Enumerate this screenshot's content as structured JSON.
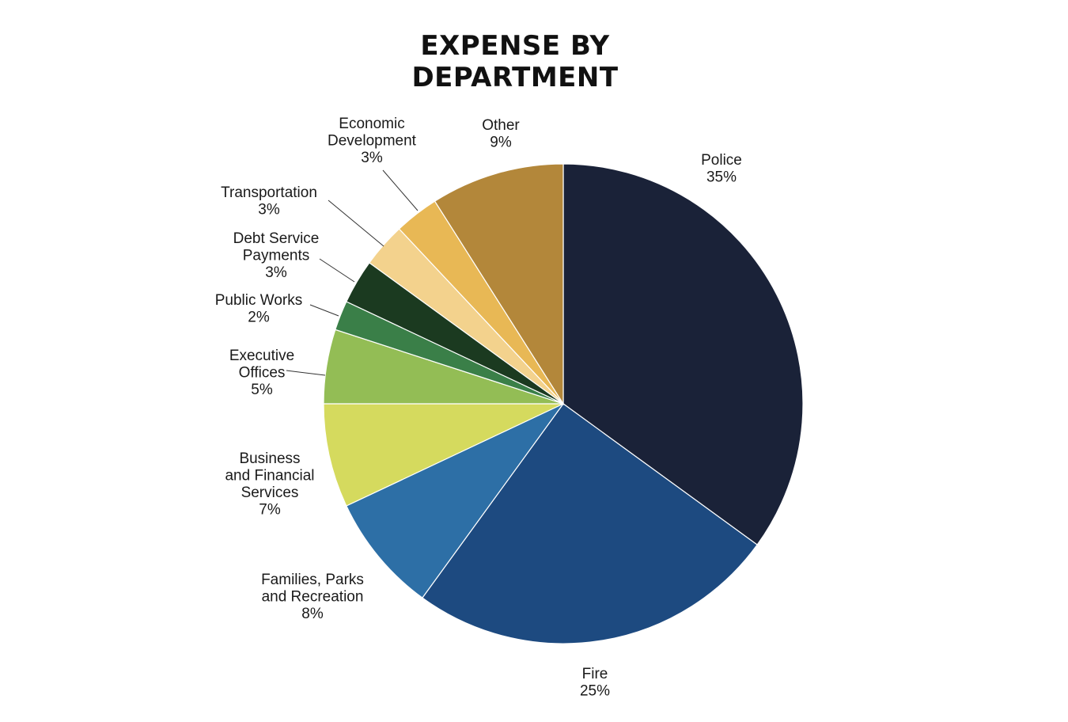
{
  "chart_data": {
    "type": "pie",
    "title": [
      "EXPENSE BY",
      "DEPARTMENT"
    ],
    "start_angle": "12 o'clock, clockwise",
    "slices": [
      {
        "label": [
          "Police"
        ],
        "pct_label": "35%",
        "value": 35,
        "color": "#1a2238"
      },
      {
        "label": [
          "Fire"
        ],
        "pct_label": "25%",
        "value": 25,
        "color": "#1d4a80"
      },
      {
        "label": [
          "Families, Parks",
          "and Recreation"
        ],
        "pct_label": "8%",
        "value": 8,
        "color": "#2d6fa6"
      },
      {
        "label": [
          "Business",
          "and Financial",
          "Services"
        ],
        "pct_label": "7%",
        "value": 7,
        "color": "#d5da5e"
      },
      {
        "label": [
          "Executive",
          "Offices"
        ],
        "pct_label": "5%",
        "value": 5,
        "color": "#93bd55"
      },
      {
        "label": [
          "Public Works"
        ],
        "pct_label": "2%",
        "value": 2,
        "color": "#3a7f48"
      },
      {
        "label": [
          "Debt Service",
          "Payments"
        ],
        "pct_label": "3%",
        "value": 3,
        "color": "#1b3a20"
      },
      {
        "label": [
          "Transportation"
        ],
        "pct_label": "3%",
        "value": 3,
        "color": "#f3d28d"
      },
      {
        "label": [
          "Economic",
          "Development"
        ],
        "pct_label": "3%",
        "value": 3,
        "color": "#e8b855"
      },
      {
        "label": [
          "Other"
        ],
        "pct_label": "9%",
        "value": 9,
        "color": "#b3873a"
      }
    ]
  }
}
